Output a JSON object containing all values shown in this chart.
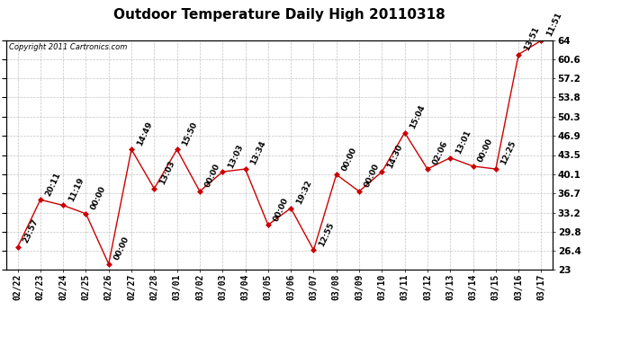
{
  "title": "Outdoor Temperature Daily High 20110318",
  "copyright": "Copyright 2011 Cartronics.com",
  "x_labels": [
    "02/22",
    "02/23",
    "02/24",
    "02/25",
    "02/26",
    "02/27",
    "02/28",
    "03/01",
    "03/02",
    "03/03",
    "03/04",
    "03/05",
    "03/06",
    "03/07",
    "03/08",
    "03/09",
    "03/10",
    "03/11",
    "03/12",
    "03/13",
    "03/14",
    "03/15",
    "03/16",
    "03/17"
  ],
  "y_values": [
    27.0,
    35.5,
    34.5,
    33.0,
    24.0,
    44.5,
    37.5,
    44.5,
    37.0,
    40.5,
    41.0,
    31.0,
    34.0,
    26.5,
    40.0,
    37.0,
    40.5,
    47.5,
    41.0,
    43.0,
    41.5,
    41.0,
    61.5,
    64.0
  ],
  "annotations": [
    "23:57",
    "20:11",
    "11:19",
    "00:00",
    "00:00",
    "14:49",
    "13:03",
    "15:50",
    "00:00",
    "13:03",
    "13:34",
    "00:00",
    "19:32",
    "12:55",
    "00:00",
    "00:00",
    "14:30",
    "15:04",
    "02:06",
    "13:01",
    "00:00",
    "12:25",
    "13:51",
    "11:51"
  ],
  "y_min": 23.0,
  "y_max": 64.0,
  "y_ticks": [
    23.0,
    26.4,
    29.8,
    33.2,
    36.7,
    40.1,
    43.5,
    46.9,
    50.3,
    53.8,
    57.2,
    60.6,
    64.0
  ],
  "line_color": "#cc0000",
  "marker_color": "#cc0000",
  "bg_color": "#ffffff",
  "grid_color": "#aaaaaa",
  "title_fontsize": 11,
  "annotation_fontsize": 6.5,
  "xtick_fontsize": 7,
  "ytick_fontsize": 7.5
}
